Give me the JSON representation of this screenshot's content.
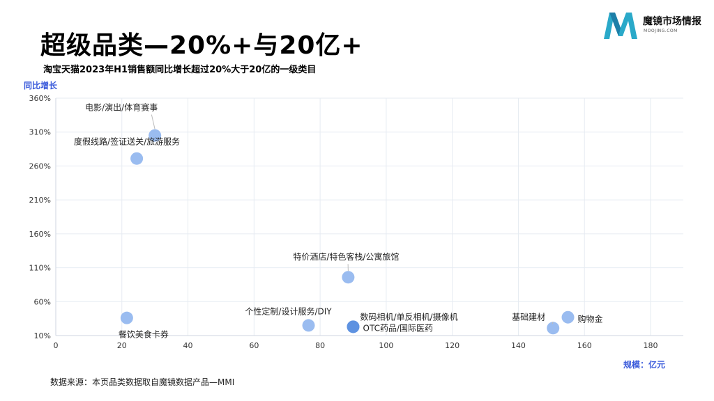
{
  "header": {
    "title": "超级品类—20%+与20亿+",
    "subtitle": "淘宝天猫2023年H1销售额同比增长超过20%大于20亿的一级类目"
  },
  "brand": {
    "name": "魔镜市场情报",
    "url_text": "MOOJING.COM",
    "color": "#2aa9c9"
  },
  "footer": {
    "source": "数据来源：本页品类数据取自魔镜数据产品—MMI"
  },
  "chart_data": {
    "type": "scatter",
    "ylabel": "同比增长",
    "xlabel": "规模：亿元",
    "xlim": [
      0,
      190
    ],
    "ylim": [
      10,
      360
    ],
    "x_ticks": [
      "0",
      "20",
      "40",
      "60",
      "80",
      "100",
      "120",
      "140",
      "160",
      "180"
    ],
    "y_ticks": [
      "10%",
      "60%",
      "110%",
      "160%",
      "210%",
      "260%",
      "310%",
      "360%"
    ],
    "grid": true,
    "point_color": "#8fb5ee",
    "point_color_dark": "#5b8fe0",
    "points": [
      {
        "label": "电影/演出/体育赛事",
        "x": 30,
        "y": 305
      },
      {
        "label": "度假线路/签证送关/旅游服务",
        "x": 24.5,
        "y": 271
      },
      {
        "label": "特价酒店/特色客栈/公寓旅馆",
        "x": 88.5,
        "y": 96
      },
      {
        "label": "餐饮美食卡券",
        "x": 21.5,
        "y": 36
      },
      {
        "label": "个性定制/设计服务/DIY",
        "x": 76.5,
        "y": 25
      },
      {
        "label": "数码相机/单反相机/摄像机",
        "x": 90,
        "y": 23
      },
      {
        "label": "OTC药品/国际医药",
        "x": 90,
        "y": 23
      },
      {
        "label": "基础建材",
        "x": 150.5,
        "y": 21
      },
      {
        "label": "购物金",
        "x": 155,
        "y": 37
      }
    ]
  }
}
